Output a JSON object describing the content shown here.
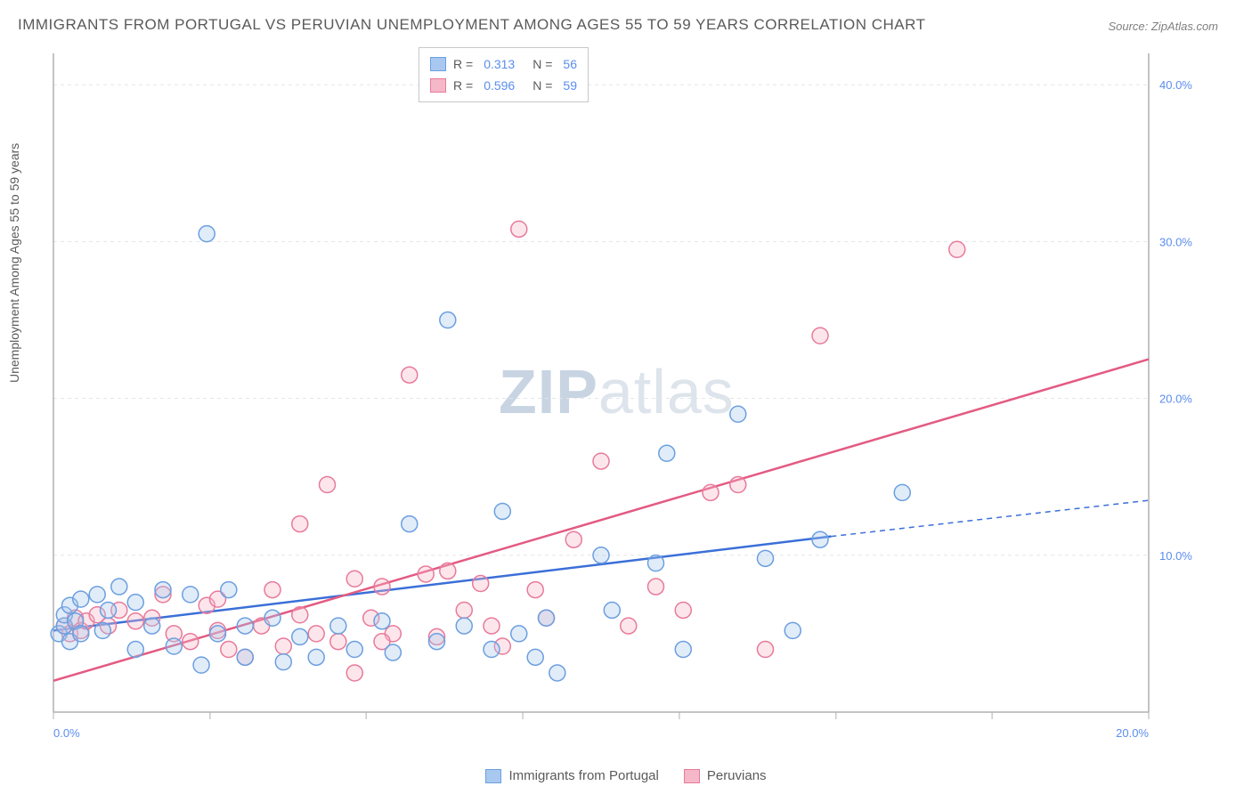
{
  "title": "IMMIGRANTS FROM PORTUGAL VS PERUVIAN UNEMPLOYMENT AMONG AGES 55 TO 59 YEARS CORRELATION CHART",
  "source": "Source: ZipAtlas.com",
  "y_axis_label": "Unemployment Among Ages 55 to 59 years",
  "watermark_bold": "ZIP",
  "watermark_light": "atlas",
  "chart": {
    "type": "scatter",
    "background_color": "#ffffff",
    "grid_color": "#e5e5e5",
    "axis_color": "#b0b0b0",
    "tick_label_color": "#5b8def",
    "x_range": [
      0,
      20
    ],
    "y_range": [
      0,
      42
    ],
    "y_ticks": [
      10,
      20,
      30,
      40
    ],
    "y_tick_labels": [
      "10.0%",
      "20.0%",
      "30.0%",
      "40.0%"
    ],
    "x_ticks": [
      0,
      2.86,
      5.71,
      8.57,
      11.43,
      14.29,
      17.14,
      20
    ],
    "x_tick_labels_shown": {
      "0": "0.0%",
      "20": "20.0%"
    },
    "marker_radius": 9,
    "marker_stroke_width": 1.5,
    "marker_fill_opacity": 0.35
  },
  "series": {
    "portugal": {
      "label": "Immigrants from Portugal",
      "color_fill": "#a8c8ef",
      "color_stroke": "#6b9fe0",
      "r_value": "0.313",
      "n_value": "56",
      "trend": {
        "x1": 0,
        "y1": 5.2,
        "x2": 14.2,
        "y2": 11.2,
        "x2_dash": 20,
        "y2_dash": 13.5,
        "color": "#3b6fd8",
        "width": 2.5
      },
      "points": [
        [
          0.1,
          5.0
        ],
        [
          0.2,
          5.5
        ],
        [
          0.2,
          6.2
        ],
        [
          0.3,
          4.5
        ],
        [
          0.3,
          6.8
        ],
        [
          0.4,
          5.8
        ],
        [
          0.5,
          7.2
        ],
        [
          0.5,
          5.0
        ],
        [
          0.8,
          7.5
        ],
        [
          0.9,
          5.2
        ],
        [
          1.0,
          6.5
        ],
        [
          1.2,
          8.0
        ],
        [
          1.5,
          4.0
        ],
        [
          1.5,
          7.0
        ],
        [
          1.8,
          5.5
        ],
        [
          2.0,
          7.8
        ],
        [
          2.2,
          4.2
        ],
        [
          2.5,
          7.5
        ],
        [
          2.7,
          3.0
        ],
        [
          2.8,
          30.5
        ],
        [
          3.0,
          5.0
        ],
        [
          3.2,
          7.8
        ],
        [
          3.5,
          5.5
        ],
        [
          3.5,
          3.5
        ],
        [
          4.0,
          6.0
        ],
        [
          4.2,
          3.2
        ],
        [
          4.5,
          4.8
        ],
        [
          4.8,
          3.5
        ],
        [
          5.2,
          5.5
        ],
        [
          5.5,
          4.0
        ],
        [
          6.0,
          5.8
        ],
        [
          6.2,
          3.8
        ],
        [
          6.5,
          12.0
        ],
        [
          7.0,
          4.5
        ],
        [
          7.2,
          25.0
        ],
        [
          7.5,
          5.5
        ],
        [
          8.0,
          4.0
        ],
        [
          8.2,
          12.8
        ],
        [
          8.5,
          5.0
        ],
        [
          8.8,
          3.5
        ],
        [
          9.0,
          6.0
        ],
        [
          9.2,
          2.5
        ],
        [
          10.0,
          10.0
        ],
        [
          10.2,
          6.5
        ],
        [
          11.0,
          9.5
        ],
        [
          11.2,
          16.5
        ],
        [
          11.5,
          4.0
        ],
        [
          12.5,
          19.0
        ],
        [
          13.5,
          5.2
        ],
        [
          14.0,
          11.0
        ],
        [
          15.5,
          14.0
        ],
        [
          13.0,
          9.8
        ]
      ]
    },
    "peruvians": {
      "label": "Peruvians",
      "color_fill": "#f5b8c8",
      "color_stroke": "#e87a9a",
      "r_value": "0.596",
      "n_value": "59",
      "trend": {
        "x1": 0,
        "y1": 2.0,
        "x2": 20,
        "y2": 22.5,
        "color": "#e35a82",
        "width": 2.5
      },
      "points": [
        [
          0.2,
          5.5
        ],
        [
          0.3,
          5.0
        ],
        [
          0.4,
          6.0
        ],
        [
          0.5,
          5.2
        ],
        [
          0.6,
          5.8
        ],
        [
          0.8,
          6.2
        ],
        [
          1.0,
          5.5
        ],
        [
          1.2,
          6.5
        ],
        [
          1.5,
          5.8
        ],
        [
          1.8,
          6.0
        ],
        [
          2.0,
          7.5
        ],
        [
          2.2,
          5.0
        ],
        [
          2.5,
          4.5
        ],
        [
          2.8,
          6.8
        ],
        [
          3.0,
          5.2
        ],
        [
          3.2,
          4.0
        ],
        [
          3.5,
          3.5
        ],
        [
          3.8,
          5.5
        ],
        [
          4.0,
          7.8
        ],
        [
          4.2,
          4.2
        ],
        [
          4.5,
          12.0
        ],
        [
          4.8,
          5.0
        ],
        [
          5.0,
          14.5
        ],
        [
          5.2,
          4.5
        ],
        [
          5.5,
          8.5
        ],
        [
          5.5,
          2.5
        ],
        [
          5.8,
          6.0
        ],
        [
          6.0,
          8.0
        ],
        [
          6.2,
          5.0
        ],
        [
          6.5,
          21.5
        ],
        [
          6.8,
          8.8
        ],
        [
          7.0,
          4.8
        ],
        [
          7.5,
          6.5
        ],
        [
          7.8,
          8.2
        ],
        [
          8.0,
          5.5
        ],
        [
          8.2,
          4.2
        ],
        [
          8.5,
          30.8
        ],
        [
          8.8,
          7.8
        ],
        [
          9.0,
          6.0
        ],
        [
          9.5,
          11.0
        ],
        [
          10.0,
          16.0
        ],
        [
          10.5,
          5.5
        ],
        [
          11.0,
          8.0
        ],
        [
          11.5,
          6.5
        ],
        [
          12.0,
          14.0
        ],
        [
          12.5,
          14.5
        ],
        [
          13.0,
          4.0
        ],
        [
          14.0,
          24.0
        ],
        [
          16.5,
          29.5
        ],
        [
          7.2,
          9.0
        ],
        [
          3.0,
          7.2
        ],
        [
          4.5,
          6.2
        ],
        [
          6.0,
          4.5
        ]
      ]
    }
  },
  "legend": {
    "r_label": "R =",
    "n_label": "N ="
  }
}
